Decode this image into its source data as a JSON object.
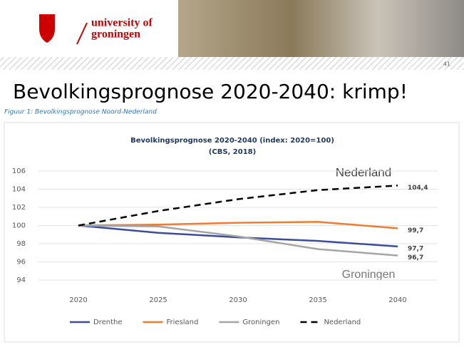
{
  "header": {
    "logo_line1": "university of",
    "logo_line2": "groningen",
    "page_number": "41"
  },
  "slide": {
    "title": "Bevolkingsprognose 2020-2040: krimp!",
    "caption": "Figuur 1: Bevolkingsprognose Noord-Nederland"
  },
  "chart_data": {
    "type": "line",
    "title": "Bevolkingsprognose 2020-2040 (index: 2020=100)",
    "subtitle": "(CBS, 2018)",
    "categories": [
      "2020",
      "2025",
      "2030",
      "2035",
      "2040"
    ],
    "series": [
      {
        "name": "Drenthe",
        "color": "#3a4d9a",
        "values": [
          100,
          99.2,
          98.7,
          98.3,
          97.7
        ],
        "value_labels": [
          null,
          null,
          null,
          null,
          "97,7"
        ]
      },
      {
        "name": "Friesland",
        "color": "#ed7d31",
        "values": [
          100,
          100.1,
          100.3,
          100.4,
          99.7
        ],
        "value_labels": [
          null,
          null,
          null,
          null,
          "99,7"
        ]
      },
      {
        "name": "Groningen",
        "color": "#a5a5a5",
        "values": [
          100,
          99.9,
          98.8,
          97.4,
          96.7
        ],
        "value_labels": [
          null,
          null,
          null,
          null,
          "96,7"
        ]
      },
      {
        "name": "Nederland",
        "color": "#000000",
        "dashed": true,
        "values": [
          100,
          101.6,
          102.9,
          103.9,
          104.4
        ],
        "value_labels": [
          null,
          null,
          null,
          null,
          "104,4"
        ]
      }
    ],
    "ylim": [
      94,
      106
    ],
    "yticks": [
      94,
      96,
      98,
      100,
      102,
      104,
      106
    ],
    "grid": true,
    "legend": "bottom",
    "annotations": [
      "Nederland",
      "Groningen"
    ]
  }
}
